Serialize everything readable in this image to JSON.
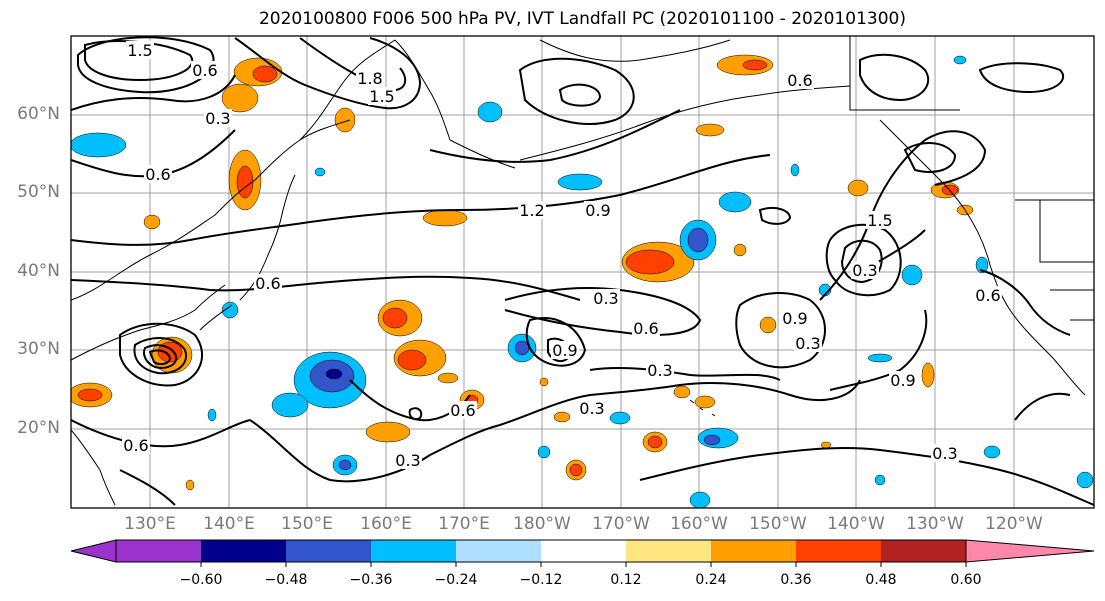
{
  "title": "2020100800 F006 500 hPa PV, IVT Landfall PC (2020101100 - 2020101300)",
  "lat_labels": [
    "60°N",
    "50°N",
    "40°N",
    "30°N",
    "20°N"
  ],
  "lon_labels": [
    "130°E",
    "140°E",
    "150°E",
    "160°E",
    "170°E",
    "180°W",
    "170°W",
    "160°W",
    "150°W",
    "140°W",
    "130°W",
    "120°W"
  ],
  "contour_labels": [
    "1.5",
    "1.8",
    "1.5",
    "0.6",
    "0.3",
    "0.6",
    "1.2",
    "0.9",
    "0.6",
    "0.3",
    "0.6",
    "0.9",
    "0.3",
    "0.6",
    "0.3",
    "0.3",
    "0.6",
    "0.3",
    "1.5",
    "0.9",
    "0.6",
    "0.3",
    "0.3",
    "0.9",
    "0.6"
  ],
  "colorbar": {
    "ticks": [
      "−0.60",
      "−0.48",
      "−0.36",
      "−0.24",
      "−0.12",
      "0.12",
      "0.24",
      "0.36",
      "0.48",
      "0.60"
    ],
    "colors": [
      "#9933cc",
      "#00008b",
      "#3355cc",
      "#00bfff",
      "#b0e0ff",
      "#ffffff",
      "#ffe680",
      "#ffa000",
      "#ff4000",
      "#b22222",
      "#ff88aa"
    ]
  }
}
